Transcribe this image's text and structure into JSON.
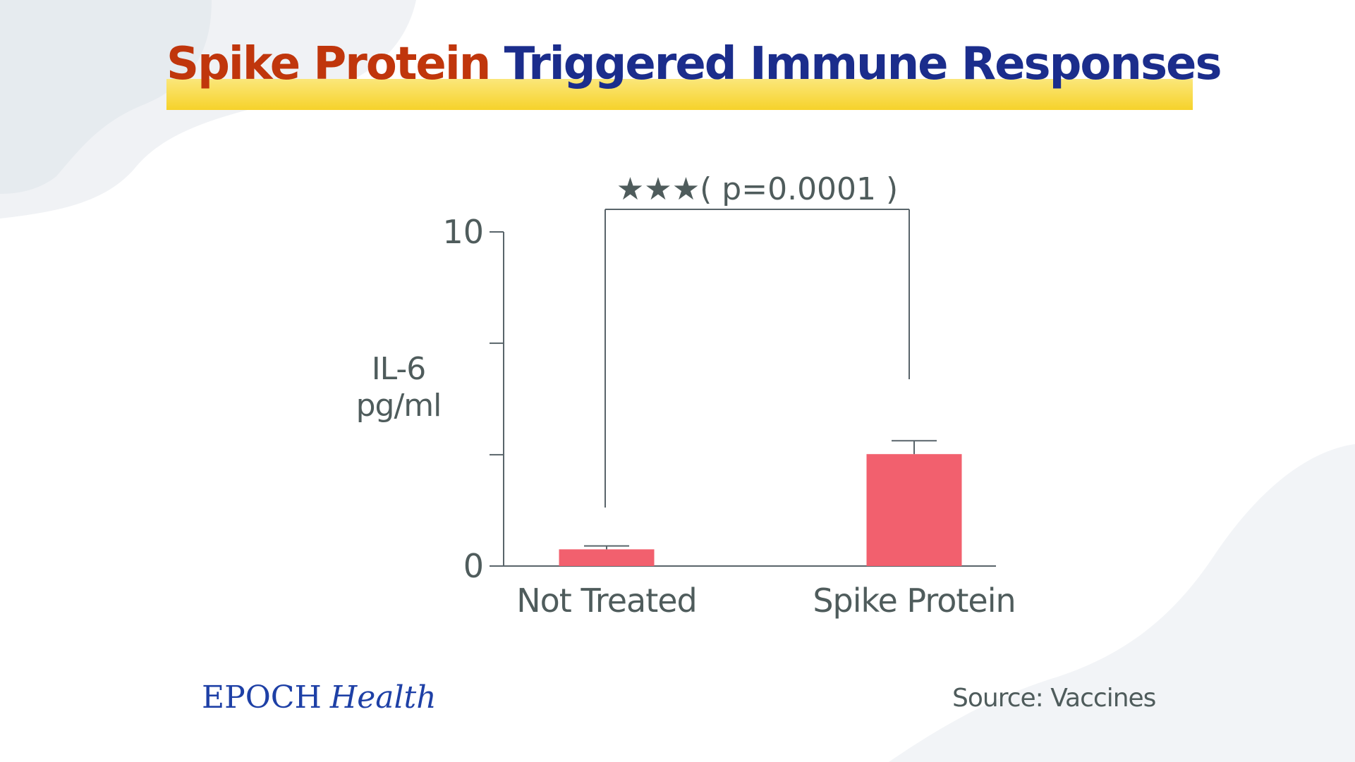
{
  "title": {
    "part_a": "Spike Protein",
    "part_b": "Triggered Immune Responses"
  },
  "colors": {
    "title_accent": "#c0360c",
    "title_main": "#1b2d8c",
    "highlight_bar": "#f6d22a",
    "bar_fill": "#f2606e",
    "axis": "#59646a",
    "text": "#4f5c5c",
    "brand": "#1e40a6"
  },
  "chart_data": {
    "type": "bar",
    "categories": [
      "Not Treated",
      "Spike Protein"
    ],
    "values": [
      0.5,
      3.35
    ],
    "error_upper": [
      0.6,
      3.75
    ],
    "ylabel": "IL-6\npg/ml",
    "ylim": [
      0,
      10
    ],
    "yticks": [
      0,
      3.33,
      6.67,
      10
    ],
    "ytick_labels": [
      "0",
      "",
      "",
      "10"
    ],
    "significance": {
      "label": "★★★( p=0.0001 )",
      "between": [
        "Not Treated",
        "Spike Protein"
      ]
    },
    "grid": false,
    "legend": "none"
  },
  "footer": {
    "brand_a": "EPOCH",
    "brand_b": "Health",
    "source": "Source: Vaccines"
  }
}
